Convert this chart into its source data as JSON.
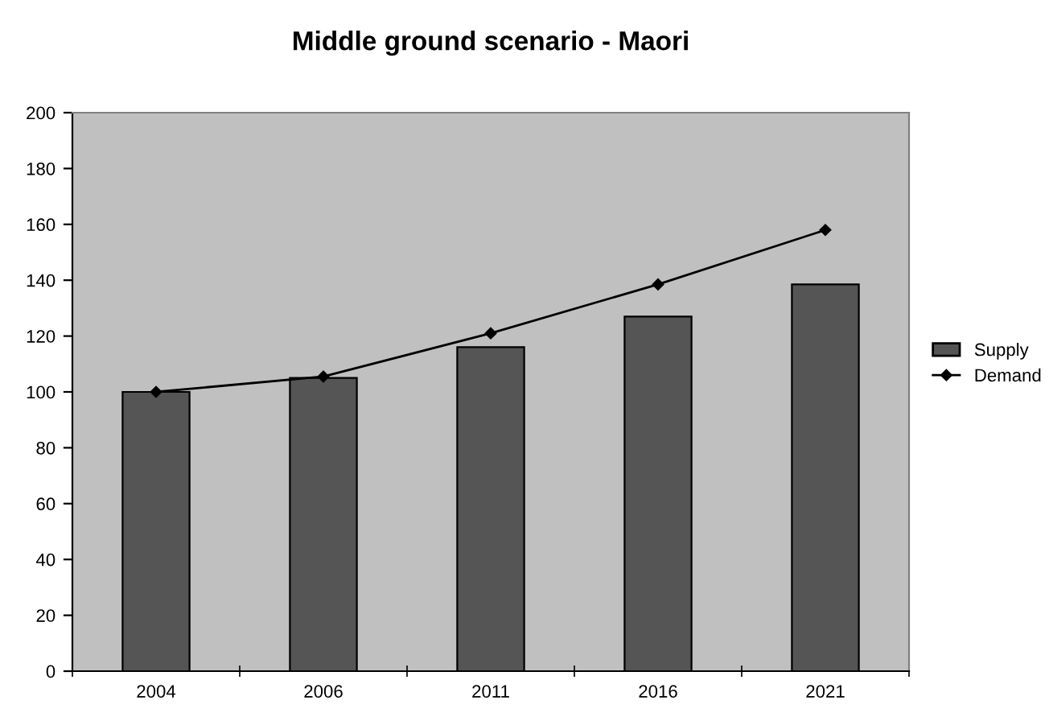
{
  "chart_data": {
    "type": "bar",
    "title": "Middle ground scenario - Maori",
    "categories": [
      "2004",
      "2006",
      "2011",
      "2016",
      "2021"
    ],
    "series": [
      {
        "name": "Supply",
        "color": "#555555",
        "values": [
          100,
          105,
          116,
          127,
          138.5
        ]
      },
      {
        "name": "Demand",
        "type": "line",
        "color": "#000000",
        "marker": "diamond",
        "values": [
          100,
          105.5,
          121,
          138.5,
          158
        ]
      }
    ],
    "ylim": [
      0,
      200
    ],
    "yticks": [
      0,
      20,
      40,
      60,
      80,
      100,
      120,
      140,
      160,
      180,
      200
    ],
    "grid": false,
    "legend": "right"
  }
}
